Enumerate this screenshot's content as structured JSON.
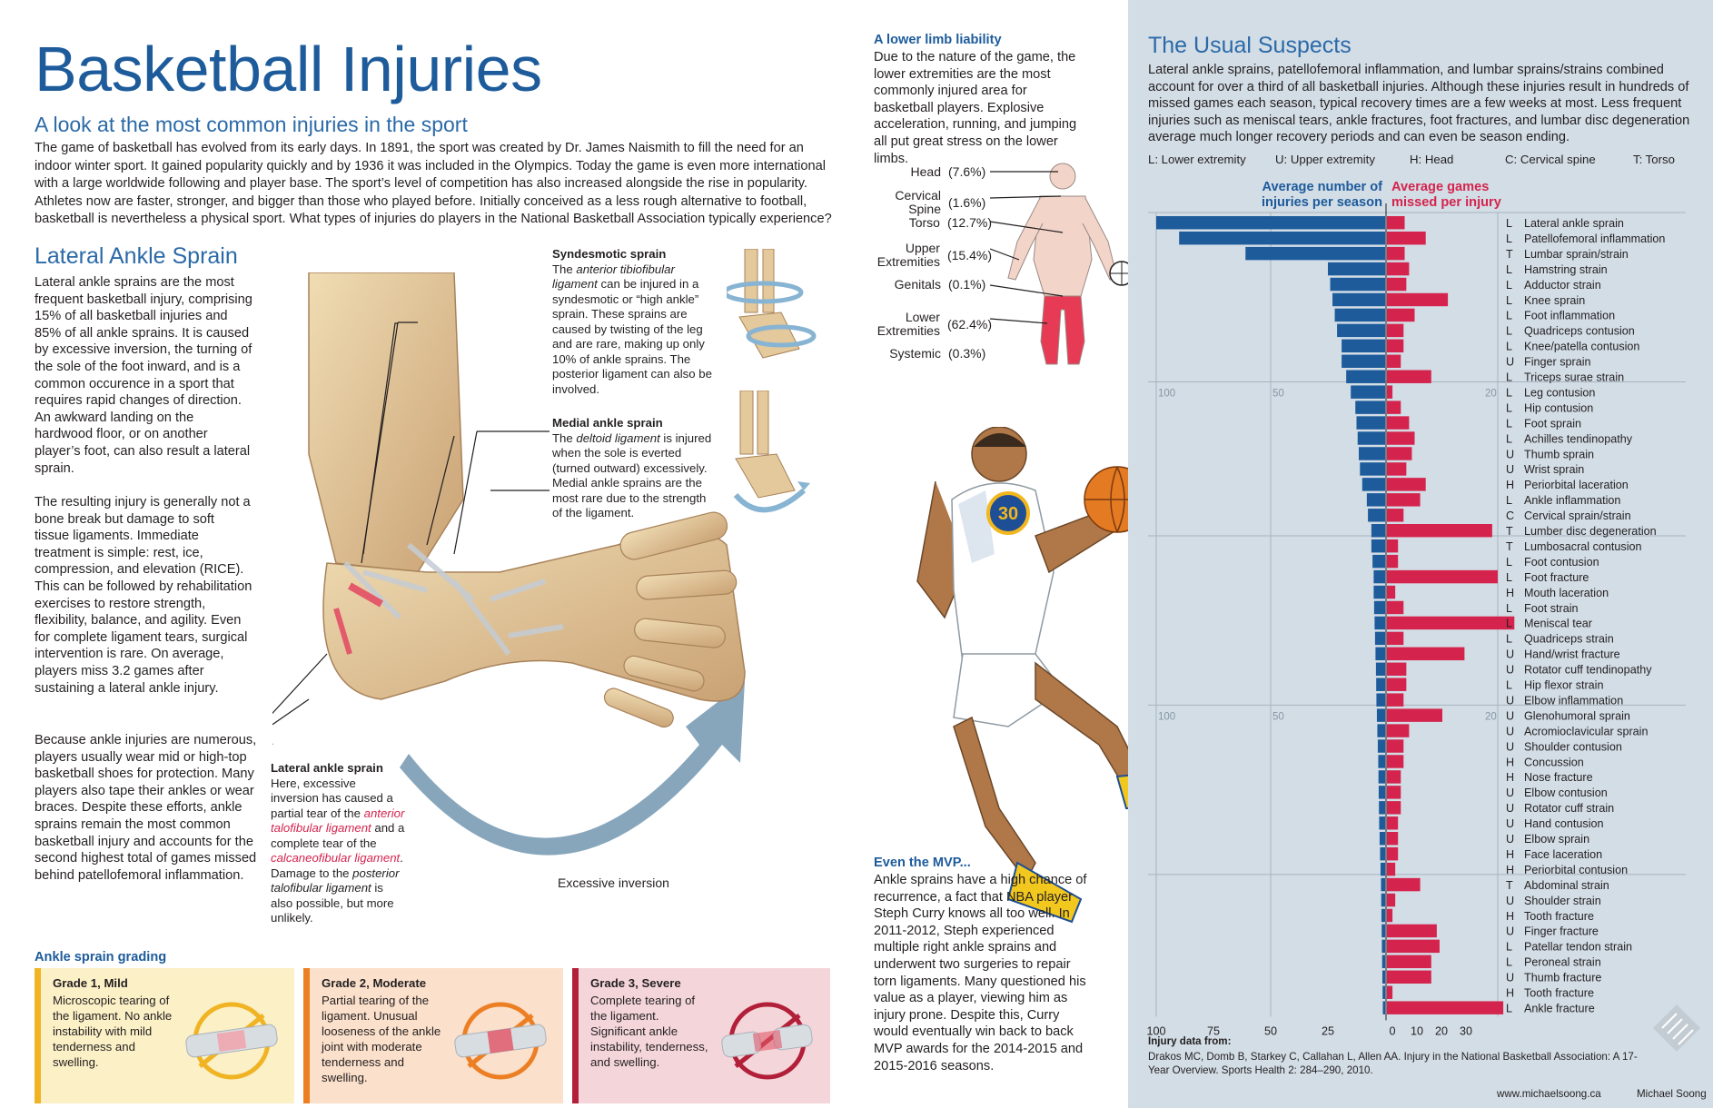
{
  "title": "Basketball Injuries",
  "subtitle": "A look at the most common injuries in the sport",
  "intro": "The game of basketball has evolved from its early days. In 1891, the sport was created by Dr. James Naismith to fill the need for an indoor winter sport. It gained popularity quickly and by 1936 it was included in the Olympics. Today the game is even more international with a large worldwide following and player base. The sport’s level of competition has also increased alongside the rise in popularity. Athletes now are faster, stronger, and bigger than those who played before. Initially conceived as a less rough alternative to football, basketball is nevertheless a physical sport. What types of injuries do players in the National Basketball Association typically experience?",
  "ankle": {
    "title": "Lateral Ankle Sprain",
    "p1": "Lateral ankle sprains are the most frequent basketball injury, comprising 15% of all basketball injuries and 85% of all ankle sprains. It is caused by excessive inversion, the turning of the sole of the foot inward, and is a common occurence in a sport that requires rapid changes of direction. An awkward landing on the hardwood floor, or on another player’s foot, can also result a lateral sprain.",
    "p2": "The resulting injury is generally not a bone break but damage to soft tissue ligaments. Immediate treatment is simple: rest, ice, compression, and elevation (RICE). This can be followed by rehabilitation exercises to restore strength, flexibility, balance, and agility. Even for complete ligament tears, surgical intervention is rare. On average, players miss 3.2 games after sustaining a lateral ankle injury.",
    "p3": "Because ankle injuries are numerous, players usually wear mid or high-top basketball shoes for protection. Many players also tape their ankles or wear braces. Despite these efforts, ankle sprains remain the most common basketball injury and accounts for the second highest total of games missed behind patellofemoral inflammation."
  },
  "syndesmotic": {
    "title": "Syndesmotic sprain",
    "pre": "The ",
    "ligament": "anterior tibiofibular ligament",
    "post": " can be injured in a syndesmotic or “high ankle” sprain. These sprains are caused by twisting of the leg and are rare, making up only 10% of ankle sprains. The posterior ligament can also be involved."
  },
  "medial": {
    "title": "Medial ankle sprain",
    "pre": "The ",
    "ligament": "deltoid ligament",
    "post": " is injured when the sole is everted (turned outward) excessively. Medial ankle sprains are the most rare due to the strength of the ligament."
  },
  "lateral_note": {
    "title": "Lateral ankle sprain",
    "t1": "Here, excessive inversion has caused a partial tear of the ",
    "l1": "anterior talofibular ligament",
    "t2": " and a complete tear of the ",
    "l2": "calcaneofibular ligament",
    "t3": ". Damage to the ",
    "l3": "posterior talofibular ligament",
    "t4": " is also possible, but more unlikely."
  },
  "excessive_inversion": "Excessive inversion",
  "grading": {
    "title": "Ankle sprain grading",
    "grades": [
      {
        "title": "Grade 1, Mild",
        "desc": "Microscopic tearing of the ligament. No ankle instability with mild tenderness and swelling.",
        "bg": "#fbf0c6",
        "bar": "#f0b323"
      },
      {
        "title": "Grade 2, Moderate",
        "desc": "Partial tearing of the ligament. Unusual looseness of the ankle joint with moderate tenderness and swelling.",
        "bg": "#fbe0cb",
        "bar": "#ec7f23"
      },
      {
        "title": "Grade 3, Severe",
        "desc": "Complete tearing of the ligament. Significant ankle instability, tenderness, and swelling.",
        "bg": "#f4d6da",
        "bar": "#b21f39"
      }
    ]
  },
  "lower": {
    "title": "A lower limb liability",
    "text": "Due to the nature of the game, the lower extremities are the most commonly injured area for basketball players. Explosive acceleration, running, and jumping all put great stress on the lower limbs."
  },
  "body_regions": [
    {
      "name": "Head",
      "pct": "(7.6%)"
    },
    {
      "name": "Cervical Spine",
      "pct": "(1.6%)"
    },
    {
      "name": "Torso",
      "pct": "(12.7%)"
    },
    {
      "name": "Upper Extremities",
      "pct": "(15.4%)"
    },
    {
      "name": "Genitals",
      "pct": "(0.1%)"
    },
    {
      "name": "Lower Extremities",
      "pct": "(62.4%)"
    },
    {
      "name": "Systemic",
      "pct": "(0.3%)"
    }
  ],
  "mvp": {
    "title": "Even the MVP...",
    "text": "Ankle sprains have a high chance of recurrence, a fact that NBA player Steph Curry knows all too well. In 2011-2012, Steph experienced multiple right ankle sprains and underwent two surgeries to repair torn ligaments. Many questioned his value as a player, viewing him as injury prone. Despite this, Curry would eventually win back to back MVP awards for the 2014-2015 and 2015-2016 seasons."
  },
  "jersey_number": "30",
  "suspects": {
    "title": "The Usual Suspects",
    "text": "Lateral ankle sprains, patellofemoral inflammation, and lumbar sprains/strains combined account for over a third of all basketball injuries. Although these injuries result in hundreds of missed games each season, typical recovery times are a few weeks at most. Less frequent injuries such as meniscal tears, ankle fractures, foot fractures, and lumbar disc degeneration average much longer recovery periods and can even be season ending.",
    "legend": [
      "L: Lower extremity",
      "U: Upper extremity",
      "H: Head",
      "C: Cervical spine",
      "T: Torso"
    ],
    "left_header": "Average number of injuries per season",
    "right_header": "Average games missed per injury"
  },
  "chart_data": {
    "type": "bar",
    "orientation": "horizontal-butterfly",
    "left_axis": {
      "label": "Average number of injuries per season",
      "ticks": [
        100,
        75,
        50,
        25,
        0
      ],
      "gridline_labels": [
        100,
        50
      ],
      "color": "#1d5b9b"
    },
    "right_axis": {
      "label": "Average games missed per injury",
      "ticks": [
        0,
        10,
        20,
        30
      ],
      "gridline_labels": [
        20
      ],
      "color": "#d4244d"
    },
    "categories": [
      "Lateral ankle sprain",
      "Patellofemoral inflammation",
      "Lumbar sprain/strain",
      "Hamstring strain",
      "Adductor strain",
      "Knee sprain",
      "Foot inflammation",
      "Quadriceps contusion",
      "Knee/patella contusion",
      "Finger sprain",
      "Triceps surae strain",
      "Leg contusion",
      "Hip contusion",
      "Foot sprain",
      "Achilles tendinopathy",
      "Thumb sprain",
      "Wrist sprain",
      "Periorbital laceration",
      "Ankle inflammation",
      "Cervical sprain/strain",
      "Lumber disc degeneration",
      "Lumbosacral contusion",
      "Foot contusion",
      "Foot fracture",
      "Mouth laceration",
      "Foot strain",
      "Meniscal tear",
      "Quadriceps strain",
      "Hand/wrist fracture",
      "Rotator cuff tendinopathy",
      "Hip flexor strain",
      "Elbow inflammation",
      "Glenohumoral sprain",
      "Acromioclavicular sprain",
      "Shoulder contusion",
      "Concussion",
      "Nose fracture",
      "Elbow contusion",
      "Rotator cuff strain",
      "Hand contusion",
      "Elbow sprain",
      "Face laceration",
      "Periorbital contusion",
      "Abdominal strain",
      "Shoulder strain",
      "Tooth fracture",
      "Finger fracture",
      "Patellar tendon strain",
      "Peroneal strain",
      "Thumb fracture",
      "Tooth fracture",
      "Ankle fracture"
    ],
    "region_codes": [
      "L",
      "L",
      "T",
      "L",
      "L",
      "L",
      "L",
      "L",
      "L",
      "U",
      "L",
      "L",
      "L",
      "L",
      "L",
      "U",
      "U",
      "H",
      "L",
      "C",
      "T",
      "T",
      "L",
      "L",
      "H",
      "L",
      "L",
      "L",
      "U",
      "U",
      "L",
      "U",
      "U",
      "U",
      "U",
      "H",
      "H",
      "U",
      "U",
      "U",
      "U",
      "H",
      "H",
      "T",
      "U",
      "H",
      "U",
      "L",
      "L",
      "U",
      "H",
      "L"
    ],
    "series": [
      {
        "name": "Average number of injuries per season",
        "values": [
          100,
          90,
          61,
          25,
          24,
          23,
          22,
          21,
          19,
          19,
          17,
          15,
          13,
          12.5,
          12,
          11.5,
          11,
          10,
          8,
          7.5,
          6,
          6,
          5.5,
          5,
          5,
          4.8,
          4.6,
          4.4,
          4.2,
          4,
          3.9,
          3.8,
          3.6,
          3.4,
          3.2,
          3,
          2.9,
          2.8,
          2.7,
          2.6,
          2.4,
          2.2,
          2,
          1.8,
          1.7,
          1.6,
          1.5,
          1.4,
          1.3,
          1.2,
          1.1,
          1
        ]
      },
      {
        "name": "Average games missed per injury",
        "values": [
          3.2,
          7,
          3.2,
          4,
          3.5,
          11,
          5,
          3,
          3,
          2.5,
          8,
          1,
          2.5,
          4,
          5,
          4.5,
          3.5,
          7,
          6,
          3,
          19,
          2,
          2,
          20,
          1.5,
          3,
          23,
          3,
          14,
          3.5,
          3.5,
          3,
          10,
          4,
          3,
          3,
          2.5,
          2.5,
          2.5,
          2,
          2,
          2,
          1.5,
          6,
          1.5,
          1,
          9,
          9.5,
          8,
          8,
          1,
          21
        ]
      }
    ]
  },
  "source": {
    "heading": "Injury data from:",
    "text": "Drakos MC, Domb B, Starkey C, Callahan L, Allen AA. Injury in the National Basketball Association: A 17-Year Overview. Sports Health 2: 284–290, 2010.",
    "url": "www.michaelsoong.ca",
    "author": "Michael Soong"
  },
  "colors": {
    "blue": "#1d5b9b",
    "red": "#d4244d",
    "panel": "#d3dde6",
    "bone": "#e3c99b",
    "skin": "#f2d4c9"
  }
}
